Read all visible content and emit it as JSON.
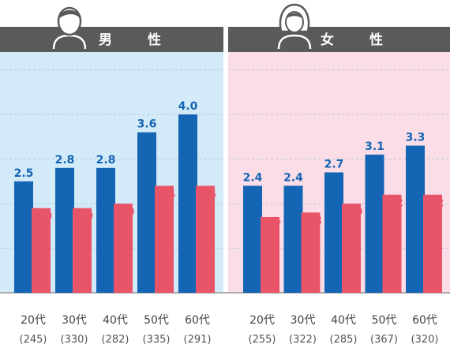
{
  "colors": {
    "blue": "#1565b5",
    "red": "#e95568",
    "header_bg": "#5a5a5a",
    "male_bg": "#d3ebf8",
    "female_bg": "#fbdde8",
    "blue_text": "#1565b5",
    "red_text": "#e95568"
  },
  "icons": {
    "male": "male-person-icon",
    "female": "female-person-icon"
  },
  "chart_data": [
    {
      "type": "bar",
      "title": "男　性",
      "categories": [
        "20代",
        "30代",
        "40代",
        "50代",
        "60代"
      ],
      "counts": [
        "(245)",
        "(330)",
        "(282)",
        "(335)",
        "(291)"
      ],
      "series": [
        {
          "values": [
            2.5,
            2.8,
            2.8,
            3.6,
            4.0
          ]
        },
        {
          "values": [
            1.9,
            1.9,
            2.0,
            2.4,
            2.4
          ]
        }
      ],
      "ylim": [
        0,
        5.5
      ],
      "grid": true
    },
    {
      "type": "bar",
      "title": "女　性",
      "categories": [
        "20代",
        "30代",
        "40代",
        "50代",
        "60代"
      ],
      "counts": [
        "(255)",
        "(322)",
        "(285)",
        "(367)",
        "(320)"
      ],
      "series": [
        {
          "values": [
            2.4,
            2.4,
            2.7,
            3.1,
            3.3
          ]
        },
        {
          "values": [
            1.7,
            1.8,
            2.0,
            2.2,
            2.2
          ]
        }
      ],
      "ylim": [
        0,
        5.5
      ],
      "grid": true
    }
  ]
}
